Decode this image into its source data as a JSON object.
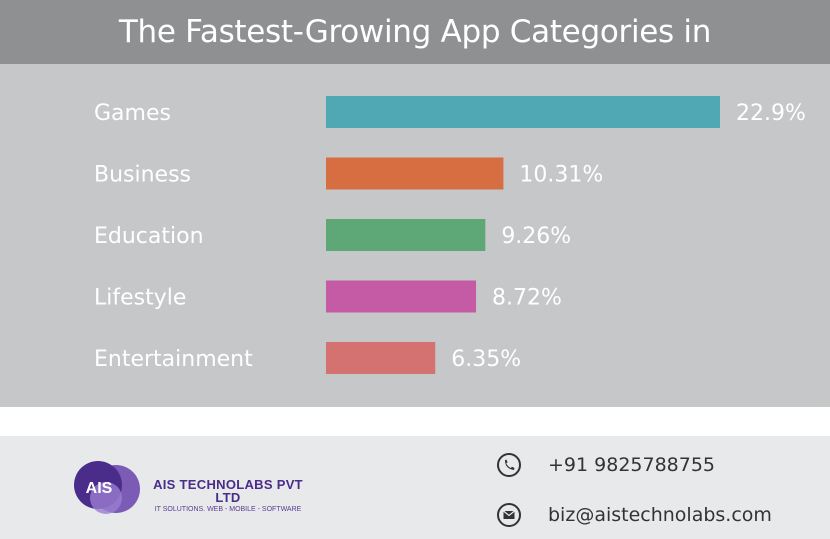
{
  "chart_data": {
    "type": "bar",
    "orientation": "horizontal",
    "title": "The Fastest-Growing App Categories in",
    "categories": [
      "Games",
      "Business",
      "Education",
      "Lifestyle",
      "Entertainment"
    ],
    "values": [
      22.9,
      10.31,
      9.26,
      8.72,
      6.35
    ],
    "value_labels": [
      "22.9%",
      "10.31%",
      "9.26%",
      "8.72%",
      "6.35%"
    ],
    "colors": [
      "#4fa8b3",
      "#d66e42",
      "#5ea878",
      "#c65ba5",
      "#d47271"
    ],
    "xlim": [
      0,
      22.9
    ],
    "grid": false
  },
  "footer": {
    "logo": {
      "mark_text": "AIS",
      "company": "AIS TECHNOLABS PVT LTD",
      "tagline": "IT SOLUTIONS. WEB - MOBILE - SOFTWARE"
    },
    "phone": {
      "icon": "phone-icon",
      "text": "+91 9825788755"
    },
    "email": {
      "icon": "envelope-icon",
      "text": "biz@aistechnolabs.com"
    }
  },
  "colors": {
    "title_bar": "#8f9091",
    "chart_background": "#c6c7c8",
    "footer_background": "#e8e9ea",
    "brand_purple": "#4a2c8a"
  }
}
